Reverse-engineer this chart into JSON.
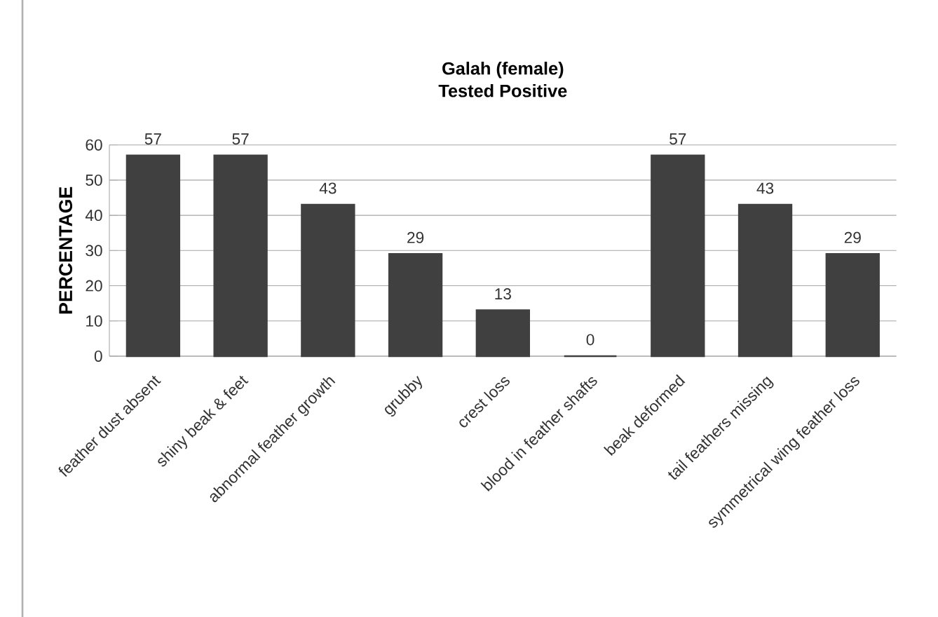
{
  "chart_data": {
    "type": "bar",
    "title": "Galah (female)",
    "subtitle": "Tested Positive",
    "ylabel": "PERCENTAGE",
    "categories": [
      "feather dust absent",
      "shiny beak & feet",
      "abnormal feather growth",
      "grubby",
      "crest loss",
      "blood in feather shafts",
      "beak deformed",
      "tail feathers missing",
      "symmetrical wing feather loss"
    ],
    "values": [
      57,
      57,
      43,
      29,
      13,
      0,
      57,
      43,
      29
    ],
    "color": "#404040",
    "ylim": [
      0,
      60
    ],
    "yticks": [
      0,
      10,
      20,
      30,
      40,
      50,
      60
    ],
    "grid": "y",
    "data_labels": true
  }
}
